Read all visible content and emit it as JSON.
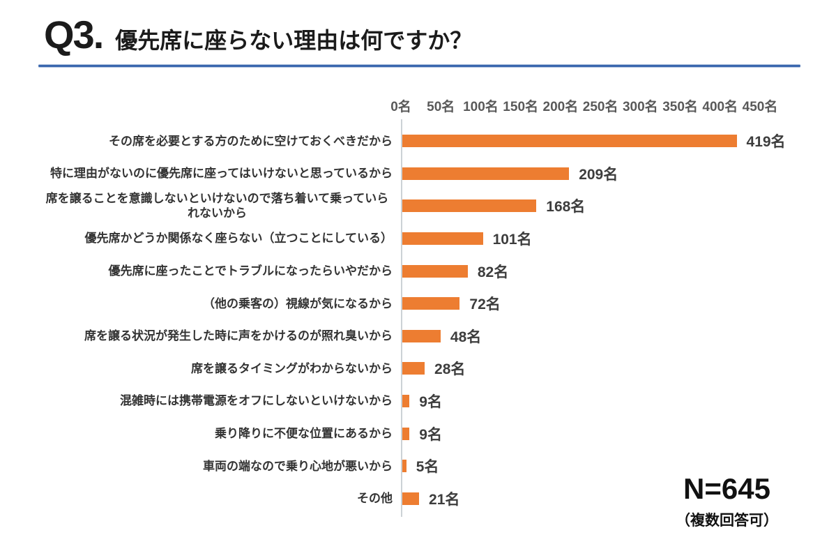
{
  "header": {
    "q_label": "Q3.",
    "title": "優先席に座らない理由は何ですか？",
    "underline_color": "#3a67ae"
  },
  "chart_data": {
    "type": "bar",
    "orientation": "horizontal",
    "title": "優先席に座らない理由は何ですか？",
    "unit": "名",
    "categories": [
      "その席を必要とする方のために空けておくべきだから",
      "特に理由がないのに優先席に座ってはいけないと思っているから",
      "席を譲ることを意識しないといけないので落ち着いて乗っていられないから",
      "優先席かどうか関係なく座らない（立つことにしている）",
      "優先席に座ったことでトラブルになったらいやだから",
      "（他の乗客の）視線が気になるから",
      "席を譲る状況が発生した時に声をかけるのが照れ臭いから",
      "席を譲るタイミングがわからないから",
      "混雑時には携帯電源をオフにしないといけないから",
      "乗り降りに不便な位置にあるから",
      "車両の端なので乗り心地が悪いから",
      "その他"
    ],
    "values": [
      419,
      209,
      168,
      101,
      82,
      72,
      48,
      28,
      9,
      9,
      5,
      21
    ],
    "value_labels": [
      "419名",
      "209名",
      "168名",
      "101名",
      "82名",
      "72名",
      "48名",
      "28名",
      "9名",
      "9名",
      "5名",
      "21名"
    ],
    "x_ticks": [
      "0名",
      "50名",
      "100名",
      "150名",
      "200名",
      "250名",
      "300名",
      "350名",
      "400名",
      "450名"
    ],
    "x_tick_values": [
      0,
      50,
      100,
      150,
      200,
      250,
      300,
      350,
      400,
      450
    ],
    "xlim": [
      0,
      450
    ],
    "bar_color": "#ED7D31",
    "grid": false,
    "legend": "none",
    "tick_position": "top"
  },
  "footer": {
    "n_label": "N=645",
    "note": "（複数回答可）"
  }
}
